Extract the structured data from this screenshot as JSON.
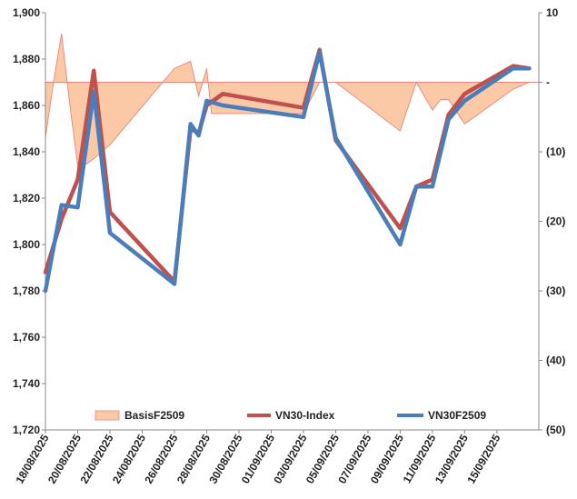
{
  "chart_data": {
    "type": "line",
    "title": "",
    "x": [
      "18/08/2025",
      "19/08/2025",
      "20/08/2025",
      "21/08/2025",
      "22/08/2025",
      "25/08/2025",
      "26/08/2025",
      "27/08/2025",
      "28/08/2025",
      "29/08/2025",
      "03/09/2025",
      "04/09/2025",
      "05/09/2025",
      "08/09/2025",
      "09/09/2025",
      "10/09/2025",
      "11/09/2025",
      "12/09/2025",
      "15/09/2025",
      "16/09/2025"
    ],
    "x_dates_num": [
      18,
      19,
      20,
      21,
      22,
      26,
      27,
      27.5,
      28,
      29,
      34,
      35,
      36,
      40,
      41,
      42,
      43,
      44,
      47,
      48
    ],
    "x_ticks": [
      "18/08/2025",
      "20/08/2025",
      "22/08/2025",
      "24/08/2025",
      "26/08/2025",
      "28/08/2025",
      "30/08/2025",
      "01/09/2025",
      "03/09/2025",
      "05/09/2025",
      "07/09/2025",
      "09/09/2025",
      "11/09/2025",
      "13/09/2025",
      "15/09/2025"
    ],
    "x_ticks_num": [
      18,
      20,
      22,
      24,
      26,
      28,
      30,
      32,
      34,
      36,
      38,
      40,
      42,
      44,
      46
    ],
    "x_range": [
      18,
      48.6
    ],
    "y_left": {
      "min": 1720,
      "max": 1900,
      "ticks": [
        "1,720",
        "1,740",
        "1,760",
        "1,780",
        "1,800",
        "1,820",
        "1,840",
        "1,860",
        "1,880",
        "1,900"
      ],
      "tick_values": [
        1720,
        1740,
        1760,
        1780,
        1800,
        1820,
        1840,
        1860,
        1880,
        1900
      ]
    },
    "y_right": {
      "min": -50,
      "max": 10,
      "ticks": [
        "10",
        "-",
        "(10)",
        "(20)",
        "(30)",
        "(40)",
        "(50)"
      ],
      "tick_values": [
        10,
        0,
        -10,
        -20,
        -30,
        -40,
        -50
      ]
    },
    "series": [
      {
        "name": "BasisF2509",
        "type": "area",
        "axis": "right",
        "color_fill": "#fcc9a6",
        "color_line": "#e8857a",
        "x": [
          18,
          18.5,
          19,
          19.5,
          20,
          20.4,
          21,
          22,
          26,
          27,
          27.5,
          28,
          28.3,
          29,
          34,
          35,
          36,
          40,
          41,
          42,
          42.5,
          43,
          44,
          47,
          48,
          48.6
        ],
        "values": [
          -8,
          0,
          7,
          -3,
          -12,
          -12,
          -11,
          -9,
          2,
          3,
          -2,
          2,
          -4.5,
          -4.5,
          -4.5,
          0,
          0,
          -7,
          0,
          -4,
          -2.5,
          -2.5,
          -6,
          -1,
          0,
          0
        ]
      },
      {
        "name": "VN30-Index",
        "type": "line",
        "axis": "left",
        "color": "#c0504d",
        "x": [
          18,
          19,
          20,
          21,
          22,
          26,
          27,
          27.5,
          28,
          29,
          34,
          35,
          36,
          40,
          41,
          42,
          43,
          44,
          47,
          48
        ],
        "values": [
          1788,
          1811,
          1828,
          1875,
          1814,
          1784,
          1850,
          1848,
          1860,
          1865,
          1859,
          1884,
          1845,
          1807,
          1825,
          1828,
          1856,
          1865,
          1877,
          1876
        ]
      },
      {
        "name": "VN30F2509",
        "type": "line",
        "axis": "left",
        "color": "#4a7ebb",
        "x": [
          18,
          19,
          20,
          21,
          22,
          26,
          27,
          27.5,
          28,
          29,
          34,
          35,
          36,
          40,
          41,
          42,
          43,
          44,
          47,
          48
        ],
        "values": [
          1780,
          1817,
          1816,
          1866,
          1805,
          1783,
          1852,
          1847,
          1862,
          1860,
          1855,
          1883,
          1846,
          1800,
          1825,
          1825,
          1854,
          1862,
          1876,
          1876
        ]
      }
    ],
    "legend": [
      {
        "label": "BasisF2509",
        "kind": "area"
      },
      {
        "label": "VN30-Index",
        "kind": "line"
      },
      {
        "label": "VN30F2509",
        "kind": "line"
      }
    ],
    "legend_position": "bottom",
    "grid": false
  }
}
